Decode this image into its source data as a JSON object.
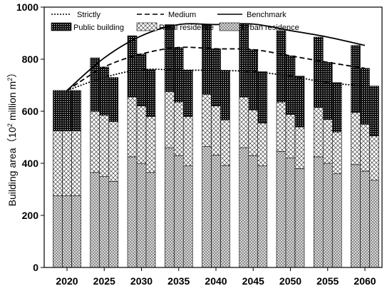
{
  "chart_data": {
    "type": "bar",
    "categories": [
      "2020",
      "2025",
      "2030",
      "2035",
      "2040",
      "2045",
      "2050",
      "2055",
      "2060"
    ],
    "sub_bars": [
      "Benchmark",
      "Medium",
      "Strictly"
    ],
    "stack_layers": [
      {
        "name": "Urban residence",
        "pattern": "dots"
      },
      {
        "name": "Rural residence",
        "pattern": "cross"
      },
      {
        "name": "Public building",
        "pattern": "dense"
      }
    ],
    "stacks": {
      "Benchmark": {
        "Urban residence": [
          275,
          365,
          425,
          460,
          465,
          460,
          445,
          425,
          395
        ],
        "Rural residence": [
          250,
          235,
          230,
          215,
          200,
          195,
          190,
          190,
          200
        ],
        "Public building": [
          155,
          205,
          235,
          258,
          268,
          280,
          275,
          270,
          258
        ]
      },
      "Medium": {
        "Urban residence": [
          275,
          350,
          400,
          430,
          432,
          430,
          420,
          400,
          370
        ],
        "Rural residence": [
          250,
          235,
          220,
          205,
          188,
          175,
          168,
          168,
          180
        ],
        "Public building": [
          155,
          185,
          200,
          210,
          220,
          232,
          225,
          220,
          215
        ]
      },
      "Strictly": {
        "Urban residence": [
          275,
          330,
          365,
          390,
          392,
          390,
          380,
          360,
          335
        ],
        "Rural residence": [
          250,
          230,
          215,
          190,
          175,
          165,
          160,
          160,
          170
        ],
        "Public building": [
          155,
          170,
          180,
          178,
          190,
          197,
          195,
          190,
          192
        ]
      }
    },
    "line_series": [
      {
        "name": "Strictly",
        "style": "dotted",
        "values": [
          680,
          730,
          760,
          758,
          757,
          752,
          735,
          710,
          697
        ]
      },
      {
        "name": "Medium",
        "style": "dashed",
        "values": [
          680,
          770,
          820,
          845,
          840,
          837,
          813,
          788,
          765
        ]
      },
      {
        "name": "Benchmark",
        "style": "solid",
        "values": [
          680,
          805,
          890,
          933,
          933,
          935,
          910,
          885,
          853
        ]
      }
    ],
    "ylabel_prefix": "Building area（10",
    "ylabel_sup": "2",
    "ylabel_mid": " million m",
    "ylabel_sup2": "2",
    "ylabel_suffix": "）",
    "ylim": [
      0,
      1000
    ],
    "yticks": [
      0,
      200,
      400,
      600,
      800,
      1000
    ],
    "legend": {
      "row1": [
        "Strictly",
        "Medium",
        "Benchmark"
      ],
      "row2": [
        "Public building",
        "Rural residence",
        "Urban residence"
      ]
    }
  }
}
